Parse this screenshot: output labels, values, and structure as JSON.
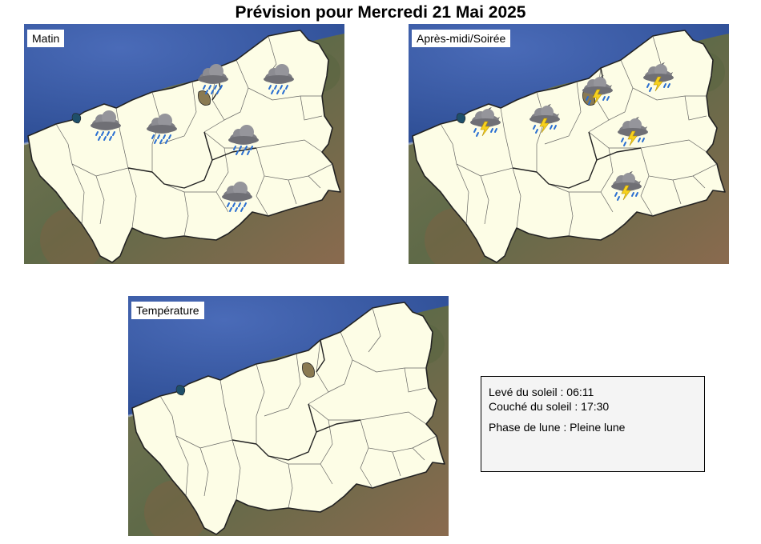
{
  "title": "Prévision pour Mercredi 21 Mai 2025",
  "panels": {
    "matin": {
      "label": "Matin",
      "icons": [
        "rain-cloud-icon",
        "rain-cloud-icon",
        "rain-cloud-icon",
        "rain-cloud-icon",
        "rain-cloud-icon",
        "rain-cloud-icon"
      ]
    },
    "apres": {
      "label": "Après-midi/Soirée",
      "icons": [
        "night-thunderstorm-icon",
        "night-thunderstorm-icon",
        "night-thunderstorm-icon",
        "night-thunderstorm-icon",
        "night-thunderstorm-icon",
        "night-thunderstorm-icon"
      ]
    },
    "temperature": {
      "label": "Température"
    }
  },
  "info": {
    "sunrise": "Levé du soleil : 06:11",
    "sunset": "Couché du soleil : 17:30",
    "moon": "Phase de lune : Pleine lune"
  },
  "colors": {
    "sea": "#3d5ea8",
    "land": "#fdfde6",
    "terrain": "#6b6a4e",
    "border": "#222222"
  }
}
